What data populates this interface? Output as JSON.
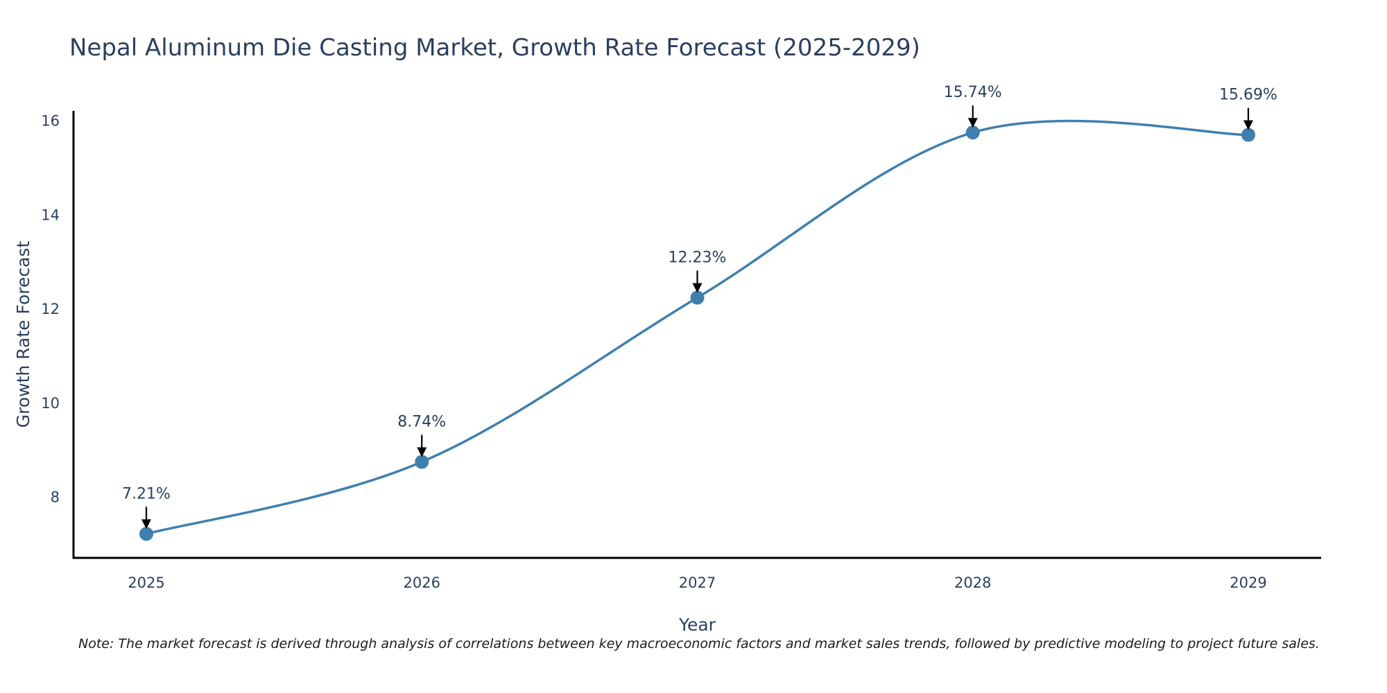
{
  "chart_data": {
    "type": "line",
    "title": "Nepal Aluminum Die Casting Market, Growth Rate Forecast (2025-2029)",
    "xlabel": "Year",
    "ylabel": "Growth Rate Forecast",
    "categories": [
      "2025",
      "2026",
      "2027",
      "2028",
      "2029"
    ],
    "series": [
      {
        "name": "Growth Rate Forecast",
        "values": [
          7.21,
          8.74,
          12.23,
          15.74,
          15.69
        ]
      }
    ],
    "data_labels": [
      "7.21%",
      "8.74%",
      "12.23%",
      "15.74%",
      "15.69%"
    ],
    "yticks": [
      8,
      10,
      12,
      14,
      16
    ],
    "ylim": [
      6.7,
      16.2
    ],
    "grid": false,
    "line_color": "#3f7fae",
    "marker_color": "#3f7fae",
    "arrow_color": "#000000"
  },
  "note": "Note: The market forecast is derived through analysis of correlations between key macroeconomic factors and market sales trends, followed by predictive modeling to project future sales."
}
